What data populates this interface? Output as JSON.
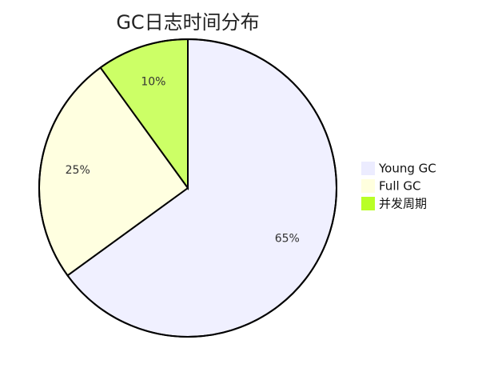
{
  "chart_data": {
    "type": "pie",
    "title": "GC日志时间分布",
    "slices": [
      {
        "label": "Young GC",
        "value": 65,
        "display": "65%",
        "color": "#f0f0ff"
      },
      {
        "label": "Full GC",
        "value": 25,
        "display": "25%",
        "color": "#ffffe0"
      },
      {
        "label": "并发周期",
        "value": 10,
        "display": "10%",
        "color": "#ccff66"
      }
    ],
    "legend_items": [
      {
        "label": "Young GC",
        "color": "#ececff"
      },
      {
        "label": "Full GC",
        "color": "#ffffde"
      },
      {
        "label": "并发周期",
        "color": "#b9ff26"
      }
    ],
    "legend_position": "right",
    "start_angle_deg": 0,
    "direction": "clockwise",
    "stroke_color": "#000000"
  }
}
